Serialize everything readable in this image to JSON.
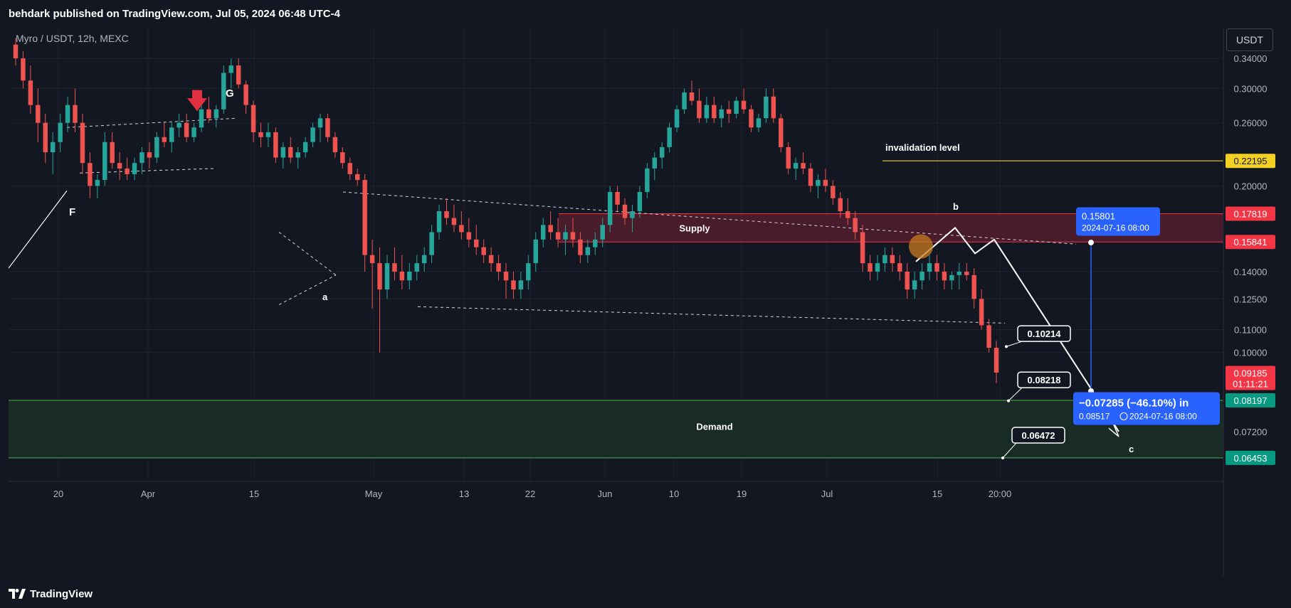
{
  "header": {
    "publisher": "behdark published on TradingView.com, Jul 05, 2024 06:48 UTC-4"
  },
  "symbol": {
    "text": "Myro / USDT, 12h, MEXC"
  },
  "currency_button": "USDT",
  "footer": {
    "brand": "TradingView"
  },
  "colors": {
    "background": "#131722",
    "up": "#26a69a",
    "down": "#ef5350",
    "supply": "#5b1f2e",
    "demand": "#1b3326",
    "invalidation": "#f2d024",
    "projection": "#2962ff"
  },
  "annotations": {
    "wave_F": "F",
    "wave_G": "G",
    "wave_a": "a",
    "wave_b": "b",
    "wave_c": "c",
    "invalidation": "invalidation level",
    "supply": "Supply",
    "demand": "Demand",
    "target1": "0.10214",
    "target2": "0.08218",
    "target3": "0.06472",
    "tooltip_top_price": "0.15801",
    "tooltip_top_date": "2024-07-16 08:00",
    "tooltip_bottom_main": "−0.07285 (−46.10%) in",
    "tooltip_bottom_price": "0.08517",
    "tooltip_bottom_date": "2024-07-16  08:00"
  },
  "chart_data": {
    "type": "candlestick",
    "title": "Myro / USDT, 12h, MEXC",
    "y_scale": "log",
    "y_ticks": [
      "0.34000",
      "0.30000",
      "0.26000",
      "0.22195",
      "0.20000",
      "0.17819",
      "0.15841",
      "0.14000",
      "0.12500",
      "0.11000",
      "0.10000",
      "0.09185",
      "0.08197",
      "0.07200",
      "0.06453"
    ],
    "x_ticks": [
      "20",
      "Apr",
      "15",
      "May",
      "13",
      "22",
      "Jun",
      "10",
      "19",
      "Jul",
      "15",
      "20:00"
    ],
    "price_labels": [
      {
        "value": "0.22195",
        "color": "#f2d024",
        "text_color": "#131722"
      },
      {
        "value": "0.17819",
        "color": "#f23645",
        "text_color": "#ffffff"
      },
      {
        "value": "0.15841",
        "color": "#f23645",
        "text_color": "#ffffff"
      },
      {
        "value": "0.09185",
        "sub": "01:11:21",
        "color": "#f23645",
        "text_color": "#ffffff"
      },
      {
        "value": "0.08197",
        "color": "#089981",
        "text_color": "#ffffff"
      },
      {
        "value": "0.06453",
        "color": "#089981",
        "text_color": "#ffffff"
      }
    ],
    "zones": {
      "supply": [
        0.15841,
        0.17819
      ],
      "demand": [
        0.06453,
        0.08197
      ],
      "invalidation": 0.22195
    },
    "targets": [
      0.10214,
      0.08218,
      0.06472
    ],
    "projection": {
      "from": 0.15801,
      "to": 0.08517,
      "change": -0.07285,
      "pct": -46.1,
      "date": "2024-07-16 08:00"
    },
    "candles": [
      [
        0.36,
        0.37,
        0.33,
        0.34
      ],
      [
        0.34,
        0.35,
        0.3,
        0.31
      ],
      [
        0.31,
        0.33,
        0.27,
        0.28
      ],
      [
        0.28,
        0.3,
        0.24,
        0.26
      ],
      [
        0.26,
        0.27,
        0.22,
        0.23
      ],
      [
        0.23,
        0.25,
        0.21,
        0.24
      ],
      [
        0.24,
        0.27,
        0.23,
        0.26
      ],
      [
        0.26,
        0.29,
        0.25,
        0.28
      ],
      [
        0.28,
        0.3,
        0.25,
        0.26
      ],
      [
        0.26,
        0.27,
        0.21,
        0.22
      ],
      [
        0.22,
        0.23,
        0.19,
        0.2
      ],
      [
        0.2,
        0.21,
        0.19,
        0.205
      ],
      [
        0.205,
        0.25,
        0.2,
        0.24
      ],
      [
        0.24,
        0.25,
        0.215,
        0.22
      ],
      [
        0.22,
        0.23,
        0.205,
        0.215
      ],
      [
        0.215,
        0.225,
        0.205,
        0.21
      ],
      [
        0.21,
        0.225,
        0.205,
        0.22
      ],
      [
        0.22,
        0.235,
        0.21,
        0.23
      ],
      [
        0.23,
        0.24,
        0.215,
        0.225
      ],
      [
        0.225,
        0.25,
        0.22,
        0.245
      ],
      [
        0.245,
        0.26,
        0.235,
        0.24
      ],
      [
        0.24,
        0.26,
        0.23,
        0.255
      ],
      [
        0.255,
        0.27,
        0.245,
        0.26
      ],
      [
        0.26,
        0.27,
        0.24,
        0.245
      ],
      [
        0.245,
        0.26,
        0.24,
        0.255
      ],
      [
        0.255,
        0.28,
        0.25,
        0.275
      ],
      [
        0.275,
        0.29,
        0.26,
        0.265
      ],
      [
        0.265,
        0.28,
        0.255,
        0.275
      ],
      [
        0.275,
        0.33,
        0.27,
        0.32
      ],
      [
        0.32,
        0.34,
        0.3,
        0.33
      ],
      [
        0.33,
        0.34,
        0.3,
        0.305
      ],
      [
        0.305,
        0.31,
        0.27,
        0.28
      ],
      [
        0.28,
        0.285,
        0.24,
        0.25
      ],
      [
        0.25,
        0.26,
        0.235,
        0.245
      ],
      [
        0.245,
        0.26,
        0.235,
        0.25
      ],
      [
        0.25,
        0.255,
        0.22,
        0.225
      ],
      [
        0.225,
        0.24,
        0.215,
        0.235
      ],
      [
        0.235,
        0.245,
        0.22,
        0.225
      ],
      [
        0.225,
        0.235,
        0.215,
        0.23
      ],
      [
        0.23,
        0.245,
        0.225,
        0.24
      ],
      [
        0.24,
        0.26,
        0.235,
        0.255
      ],
      [
        0.255,
        0.27,
        0.24,
        0.265
      ],
      [
        0.265,
        0.27,
        0.24,
        0.245
      ],
      [
        0.245,
        0.25,
        0.225,
        0.23
      ],
      [
        0.23,
        0.235,
        0.215,
        0.22
      ],
      [
        0.22,
        0.225,
        0.205,
        0.21
      ],
      [
        0.21,
        0.215,
        0.2,
        0.205
      ],
      [
        0.205,
        0.21,
        0.14,
        0.15
      ],
      [
        0.15,
        0.16,
        0.12,
        0.145
      ],
      [
        0.145,
        0.155,
        0.1,
        0.13
      ],
      [
        0.13,
        0.15,
        0.125,
        0.145
      ],
      [
        0.145,
        0.155,
        0.135,
        0.14
      ],
      [
        0.14,
        0.15,
        0.13,
        0.135
      ],
      [
        0.135,
        0.145,
        0.13,
        0.14
      ],
      [
        0.14,
        0.15,
        0.135,
        0.145
      ],
      [
        0.145,
        0.155,
        0.14,
        0.15
      ],
      [
        0.15,
        0.17,
        0.145,
        0.165
      ],
      [
        0.165,
        0.185,
        0.16,
        0.18
      ],
      [
        0.18,
        0.19,
        0.17,
        0.175
      ],
      [
        0.175,
        0.185,
        0.165,
        0.17
      ],
      [
        0.17,
        0.18,
        0.16,
        0.165
      ],
      [
        0.165,
        0.175,
        0.155,
        0.16
      ],
      [
        0.16,
        0.17,
        0.15,
        0.155
      ],
      [
        0.155,
        0.16,
        0.145,
        0.15
      ],
      [
        0.15,
        0.155,
        0.14,
        0.145
      ],
      [
        0.145,
        0.15,
        0.135,
        0.14
      ],
      [
        0.14,
        0.145,
        0.125,
        0.135
      ],
      [
        0.135,
        0.14,
        0.125,
        0.13
      ],
      [
        0.13,
        0.14,
        0.125,
        0.135
      ],
      [
        0.135,
        0.15,
        0.13,
        0.145
      ],
      [
        0.145,
        0.165,
        0.14,
        0.16
      ],
      [
        0.16,
        0.175,
        0.155,
        0.17
      ],
      [
        0.17,
        0.18,
        0.16,
        0.165
      ],
      [
        0.165,
        0.175,
        0.155,
        0.16
      ],
      [
        0.16,
        0.17,
        0.15,
        0.165
      ],
      [
        0.165,
        0.175,
        0.155,
        0.16
      ],
      [
        0.16,
        0.165,
        0.145,
        0.15
      ],
      [
        0.15,
        0.16,
        0.145,
        0.155
      ],
      [
        0.155,
        0.165,
        0.15,
        0.16
      ],
      [
        0.16,
        0.175,
        0.155,
        0.17
      ],
      [
        0.17,
        0.2,
        0.165,
        0.195
      ],
      [
        0.195,
        0.2,
        0.18,
        0.185
      ],
      [
        0.185,
        0.19,
        0.17,
        0.175
      ],
      [
        0.175,
        0.185,
        0.165,
        0.18
      ],
      [
        0.18,
        0.2,
        0.175,
        0.195
      ],
      [
        0.195,
        0.22,
        0.19,
        0.215
      ],
      [
        0.215,
        0.23,
        0.205,
        0.225
      ],
      [
        0.225,
        0.24,
        0.215,
        0.235
      ],
      [
        0.235,
        0.26,
        0.23,
        0.255
      ],
      [
        0.255,
        0.28,
        0.25,
        0.275
      ],
      [
        0.275,
        0.3,
        0.27,
        0.295
      ],
      [
        0.295,
        0.31,
        0.28,
        0.285
      ],
      [
        0.285,
        0.3,
        0.26,
        0.265
      ],
      [
        0.265,
        0.29,
        0.26,
        0.28
      ],
      [
        0.28,
        0.29,
        0.26,
        0.265
      ],
      [
        0.265,
        0.28,
        0.255,
        0.275
      ],
      [
        0.275,
        0.285,
        0.26,
        0.27
      ],
      [
        0.27,
        0.29,
        0.265,
        0.285
      ],
      [
        0.285,
        0.3,
        0.27,
        0.275
      ],
      [
        0.275,
        0.28,
        0.25,
        0.255
      ],
      [
        0.255,
        0.27,
        0.25,
        0.265
      ],
      [
        0.265,
        0.3,
        0.26,
        0.29
      ],
      [
        0.29,
        0.3,
        0.26,
        0.265
      ],
      [
        0.265,
        0.27,
        0.23,
        0.235
      ],
      [
        0.235,
        0.24,
        0.21,
        0.215
      ],
      [
        0.215,
        0.225,
        0.205,
        0.22
      ],
      [
        0.22,
        0.23,
        0.21,
        0.215
      ],
      [
        0.215,
        0.22,
        0.195,
        0.2
      ],
      [
        0.2,
        0.21,
        0.19,
        0.205
      ],
      [
        0.205,
        0.215,
        0.195,
        0.2
      ],
      [
        0.2,
        0.205,
        0.185,
        0.19
      ],
      [
        0.19,
        0.195,
        0.175,
        0.18
      ],
      [
        0.18,
        0.19,
        0.17,
        0.175
      ],
      [
        0.175,
        0.18,
        0.16,
        0.165
      ],
      [
        0.165,
        0.17,
        0.14,
        0.145
      ],
      [
        0.145,
        0.15,
        0.135,
        0.14
      ],
      [
        0.14,
        0.15,
        0.135,
        0.145
      ],
      [
        0.145,
        0.155,
        0.14,
        0.15
      ],
      [
        0.15,
        0.155,
        0.14,
        0.145
      ],
      [
        0.145,
        0.15,
        0.135,
        0.14
      ],
      [
        0.14,
        0.145,
        0.125,
        0.13
      ],
      [
        0.13,
        0.14,
        0.125,
        0.135
      ],
      [
        0.135,
        0.145,
        0.13,
        0.14
      ],
      [
        0.14,
        0.15,
        0.135,
        0.145
      ],
      [
        0.145,
        0.15,
        0.135,
        0.14
      ],
      [
        0.14,
        0.145,
        0.13,
        0.135
      ],
      [
        0.135,
        0.14,
        0.13,
        0.138
      ],
      [
        0.138,
        0.145,
        0.13,
        0.14
      ],
      [
        0.14,
        0.145,
        0.135,
        0.138
      ],
      [
        0.138,
        0.142,
        0.12,
        0.125
      ],
      [
        0.125,
        0.13,
        0.11,
        0.112
      ],
      [
        0.112,
        0.115,
        0.1,
        0.102
      ],
      [
        0.102,
        0.105,
        0.088,
        0.092
      ]
    ]
  }
}
